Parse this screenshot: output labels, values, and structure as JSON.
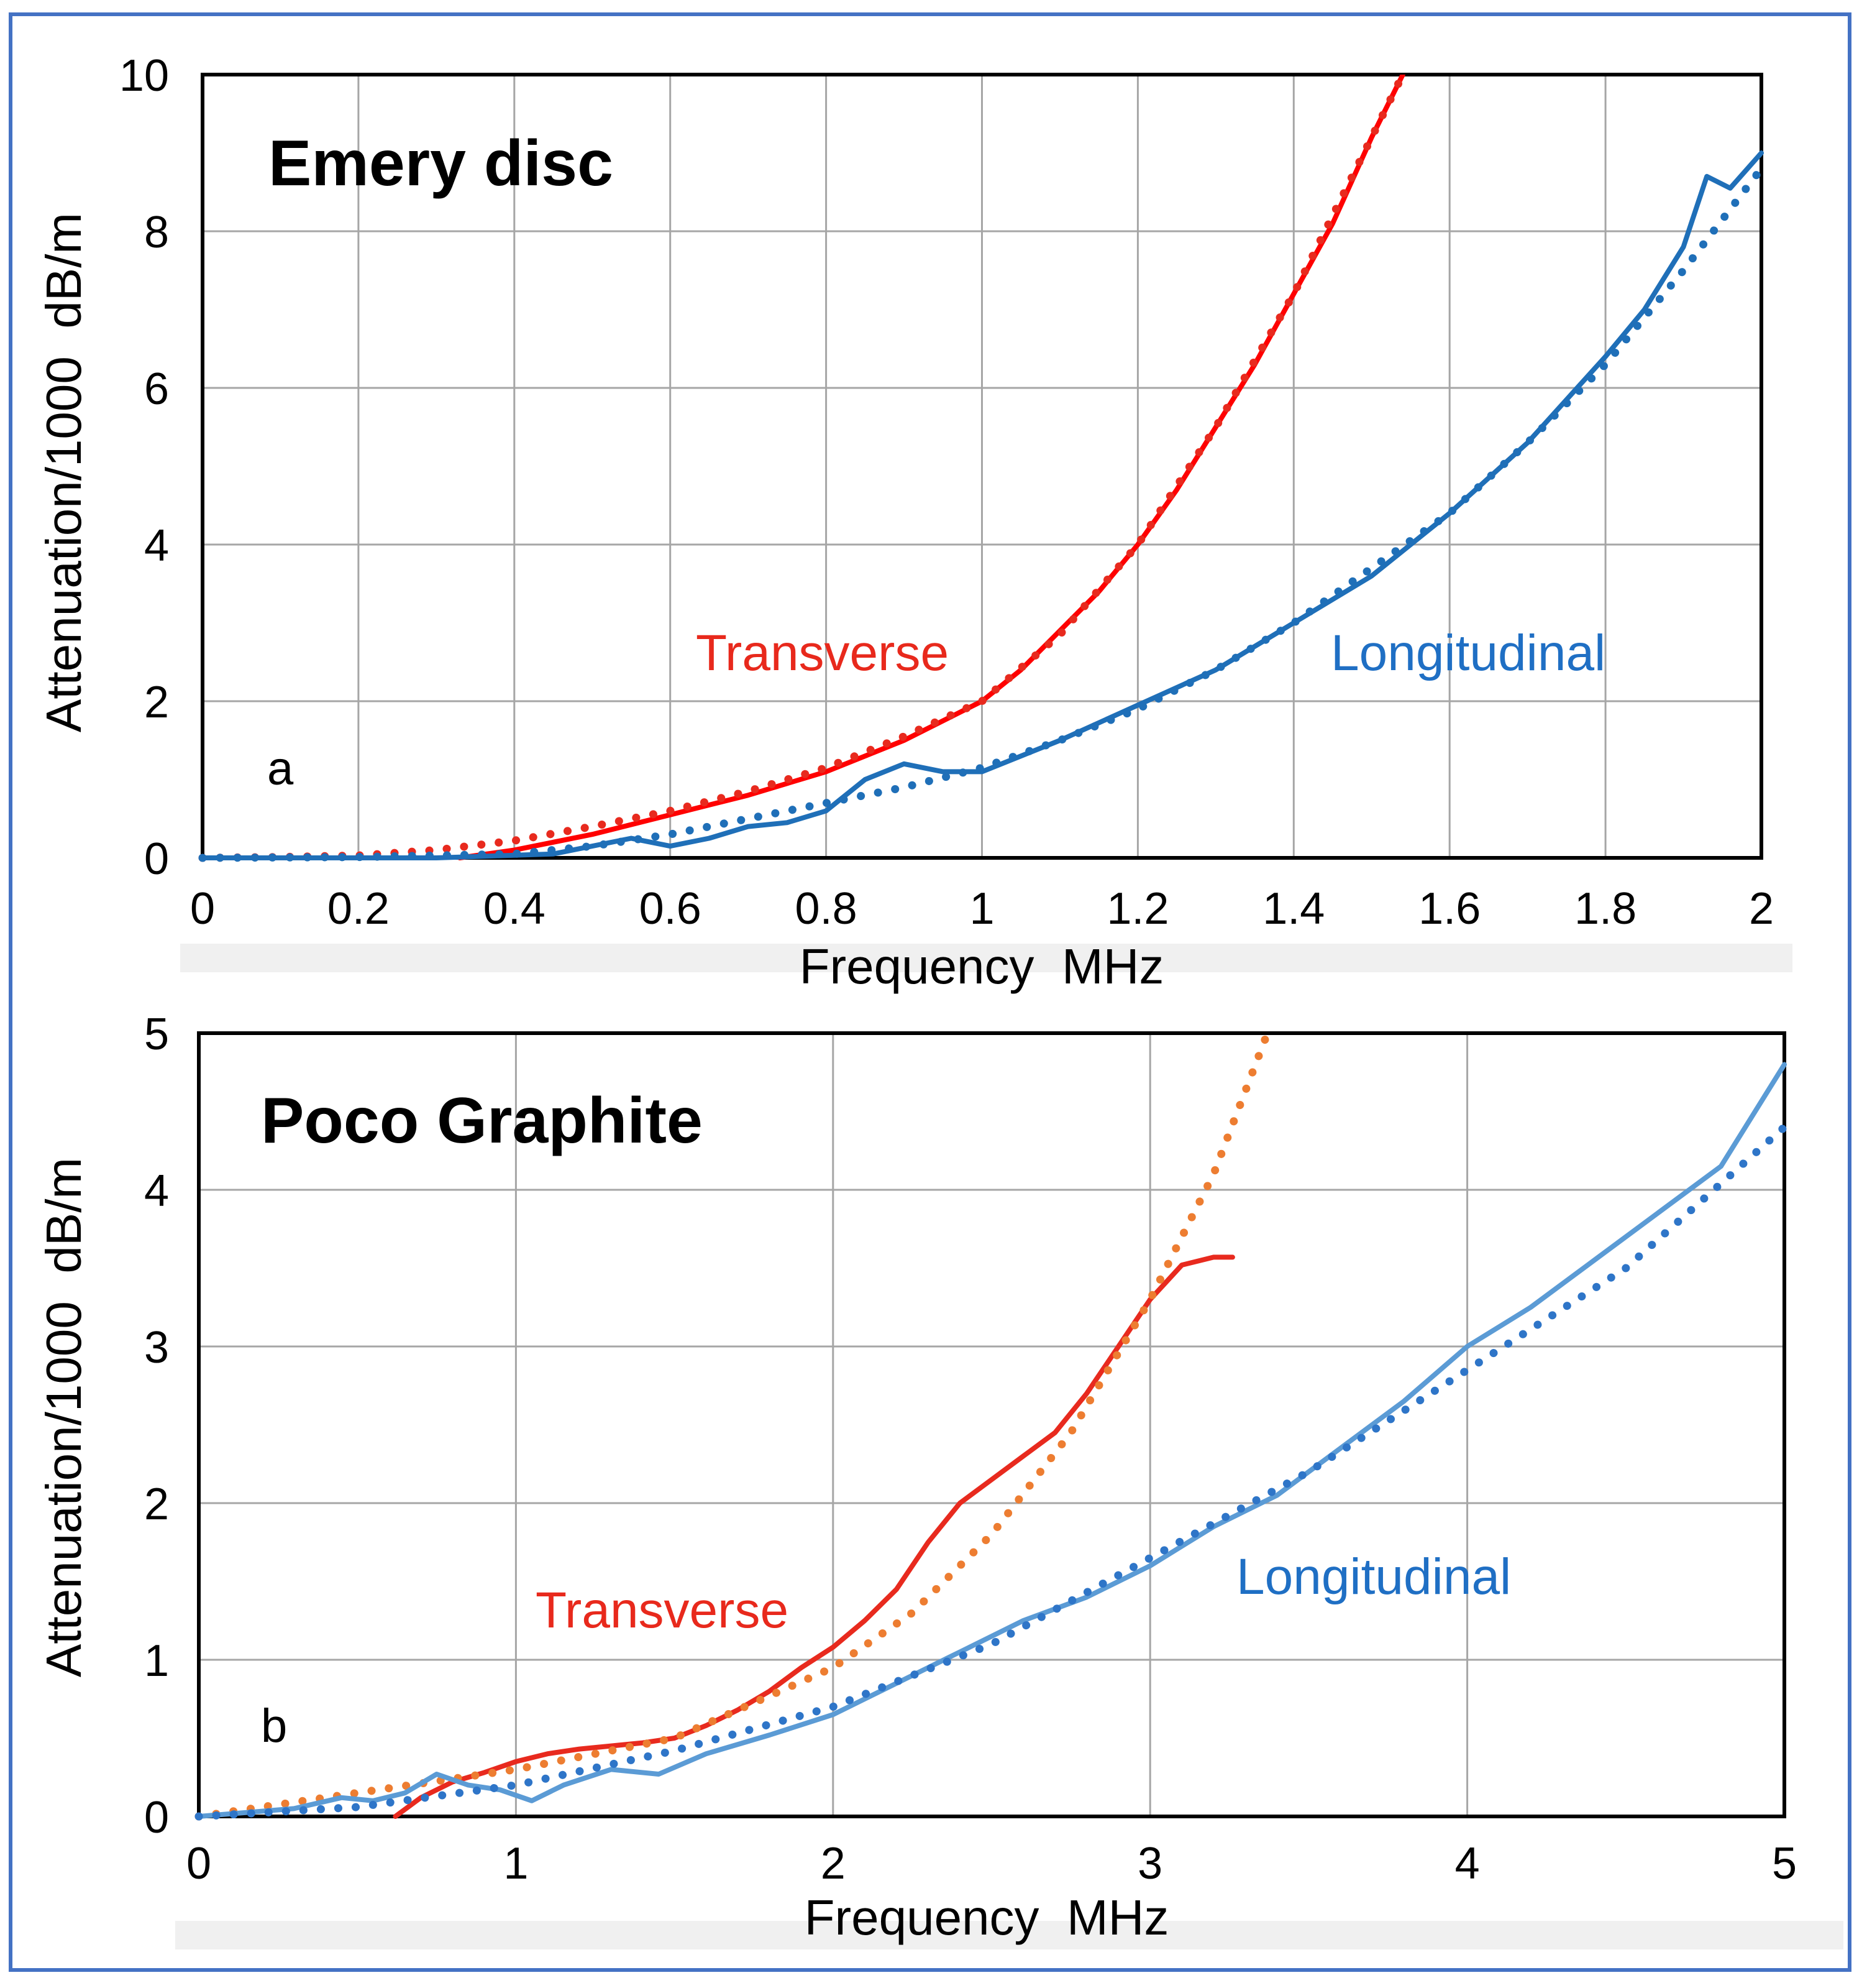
{
  "colors": {
    "transverse_fit_a": "#e82a1e",
    "transverse_meas_a": "#ff0000",
    "transverse_fit_b": "#ed7d31",
    "transverse_meas_b": "#e82a1e",
    "longitudinal_a": "#1f6fb8",
    "longitudinal_b_meas": "#5b9bd5",
    "longitudinal_b_fit": "#2e75c8",
    "frame": "#4472C4"
  },
  "chart_data": [
    {
      "type": "line",
      "panel_label": "a",
      "title": "Emery disc",
      "xlabel": "Frequency  MHz",
      "ylabel": "Attenuation/1000  dB/m",
      "xlim": [
        0,
        2
      ],
      "ylim": [
        0,
        10
      ],
      "xticks": [
        "0",
        "0.2",
        "0.4",
        "0.6",
        "0.8",
        "1",
        "1.2",
        "1.4",
        "1.6",
        "1.8",
        "2"
      ],
      "yticks": [
        "0",
        "2",
        "4",
        "6",
        "8",
        "10"
      ],
      "grid": true,
      "annotations": {
        "transverse": "Transverse",
        "longitudinal": "Longitudinal"
      },
      "series": [
        {
          "name": "Transverse (measured)",
          "style": "solid",
          "color_key": "transverse_meas_a",
          "x": [
            0.33,
            0.4,
            0.5,
            0.6,
            0.7,
            0.8,
            0.9,
            1.0,
            1.05,
            1.1,
            1.15,
            1.2,
            1.25,
            1.3,
            1.35,
            1.4,
            1.45,
            1.5,
            1.54
          ],
          "y": [
            0.0,
            0.1,
            0.3,
            0.55,
            0.8,
            1.1,
            1.5,
            2.0,
            2.4,
            2.9,
            3.4,
            4.0,
            4.7,
            5.5,
            6.3,
            7.2,
            8.1,
            9.2,
            10.0
          ]
        },
        {
          "name": "Transverse (fit)",
          "style": "dotted",
          "color_key": "transverse_fit_a",
          "x": [
            0.0,
            0.1,
            0.2,
            0.3,
            0.4,
            0.5,
            0.6,
            0.7,
            0.8,
            0.9,
            1.0,
            1.1,
            1.2,
            1.3,
            1.4,
            1.5,
            1.54
          ],
          "y": [
            0.0,
            0.01,
            0.03,
            0.1,
            0.22,
            0.4,
            0.6,
            0.85,
            1.15,
            1.55,
            2.0,
            2.85,
            4.0,
            5.5,
            7.2,
            9.2,
            10.0
          ]
        },
        {
          "name": "Longitudinal (measured)",
          "style": "solid",
          "color_key": "longitudinal_a",
          "x": [
            0.0,
            0.3,
            0.45,
            0.55,
            0.6,
            0.65,
            0.7,
            0.75,
            0.8,
            0.85,
            0.9,
            0.95,
            1.0,
            1.1,
            1.2,
            1.3,
            1.4,
            1.5,
            1.6,
            1.7,
            1.8,
            1.85,
            1.9,
            1.93,
            1.96,
            2.0
          ],
          "y": [
            0.0,
            0.0,
            0.05,
            0.25,
            0.15,
            0.25,
            0.4,
            0.45,
            0.6,
            1.0,
            1.2,
            1.1,
            1.1,
            1.5,
            1.95,
            2.4,
            3.0,
            3.6,
            4.4,
            5.3,
            6.4,
            7.0,
            7.8,
            8.7,
            8.55,
            9.0
          ]
        },
        {
          "name": "Longitudinal (fit)",
          "style": "dotted",
          "color_key": "longitudinal_a",
          "x": [
            0.0,
            0.2,
            0.4,
            0.5,
            0.6,
            0.7,
            0.8,
            0.9,
            1.0,
            1.1,
            1.2,
            1.3,
            1.4,
            1.5,
            1.6,
            1.7,
            1.8,
            1.9,
            2.0
          ],
          "y": [
            0.0,
            0.01,
            0.05,
            0.15,
            0.3,
            0.5,
            0.7,
            0.9,
            1.15,
            1.5,
            1.9,
            2.4,
            3.0,
            3.7,
            4.4,
            5.3,
            6.3,
            7.5,
            8.8
          ]
        }
      ]
    },
    {
      "type": "line",
      "panel_label": "b",
      "title": "Poco Graphite",
      "xlabel": "Frequency  MHz",
      "ylabel": "Attenuation/1000  dB/m",
      "xlim": [
        0,
        5
      ],
      "ylim": [
        0,
        5
      ],
      "xticks": [
        "0",
        "1",
        "2",
        "3",
        "4",
        "5"
      ],
      "yticks": [
        "0",
        "1",
        "2",
        "3",
        "4",
        "5"
      ],
      "grid": true,
      "annotations": {
        "transverse": "Transverse",
        "longitudinal": "Longitudinal"
      },
      "series": [
        {
          "name": "Transverse (measured)",
          "style": "solid",
          "color_key": "transverse_meas_b",
          "x": [
            0.62,
            0.7,
            0.8,
            0.9,
            1.0,
            1.1,
            1.2,
            1.3,
            1.4,
            1.5,
            1.6,
            1.7,
            1.8,
            1.9,
            2.0,
            2.1,
            2.2,
            2.3,
            2.4,
            2.5,
            2.6,
            2.7,
            2.8,
            2.9,
            3.0,
            3.1,
            3.2,
            3.26
          ],
          "y": [
            0.0,
            0.12,
            0.22,
            0.28,
            0.35,
            0.4,
            0.43,
            0.45,
            0.47,
            0.5,
            0.58,
            0.68,
            0.8,
            0.95,
            1.08,
            1.25,
            1.45,
            1.75,
            2.0,
            2.15,
            2.3,
            2.45,
            2.7,
            3.0,
            3.3,
            3.52,
            3.57,
            3.57
          ]
        },
        {
          "name": "Transverse (fit)",
          "style": "dotted",
          "color_key": "transverse_fit_b",
          "x": [
            0.0,
            0.5,
            1.0,
            1.5,
            2.0,
            2.25,
            2.5,
            2.75,
            3.0,
            3.2,
            3.37
          ],
          "y": [
            0.0,
            0.15,
            0.3,
            0.5,
            0.95,
            1.3,
            1.8,
            2.45,
            3.3,
            4.1,
            5.0
          ]
        },
        {
          "name": "Longitudinal (measured)",
          "style": "solid",
          "color_key": "longitudinal_b_meas",
          "x": [
            0.0,
            0.3,
            0.45,
            0.55,
            0.65,
            0.75,
            0.85,
            0.95,
            1.05,
            1.15,
            1.3,
            1.45,
            1.6,
            1.8,
            2.0,
            2.2,
            2.4,
            2.6,
            2.8,
            3.0,
            3.2,
            3.4,
            3.6,
            3.8,
            4.0,
            4.2,
            4.4,
            4.6,
            4.8,
            5.0
          ],
          "y": [
            0.0,
            0.05,
            0.12,
            0.1,
            0.15,
            0.27,
            0.2,
            0.17,
            0.1,
            0.2,
            0.3,
            0.27,
            0.4,
            0.52,
            0.65,
            0.85,
            1.05,
            1.25,
            1.4,
            1.6,
            1.85,
            2.05,
            2.35,
            2.65,
            3.0,
            3.25,
            3.55,
            3.85,
            4.15,
            4.8
          ]
        },
        {
          "name": "Longitudinal (fit)",
          "style": "dotted",
          "color_key": "longitudinal_b_fit",
          "x": [
            0.0,
            0.5,
            1.0,
            1.5,
            2.0,
            2.5,
            3.0,
            3.5,
            4.0,
            4.5,
            5.0
          ],
          "y": [
            0.0,
            0.06,
            0.2,
            0.42,
            0.7,
            1.1,
            1.65,
            2.2,
            2.85,
            3.5,
            4.4
          ]
        }
      ]
    }
  ]
}
